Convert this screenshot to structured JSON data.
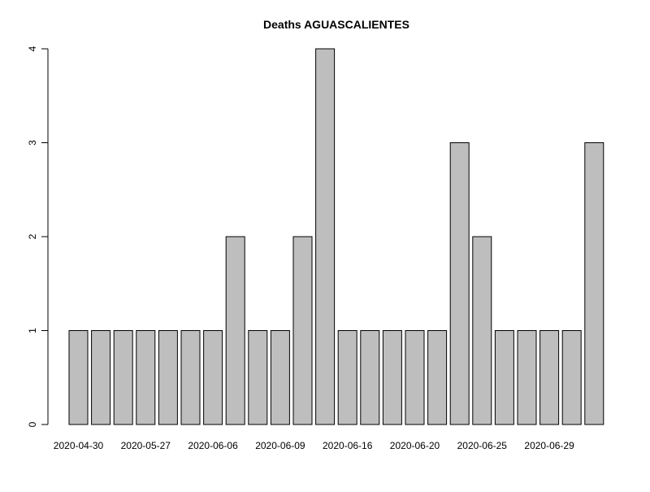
{
  "chart_data": {
    "type": "bar",
    "title": "Deaths AGUASCALIENTES",
    "xlabel": "",
    "ylabel": "",
    "ylim": [
      0,
      4
    ],
    "yticks": [
      0,
      1,
      2,
      3,
      4
    ],
    "ytick_labels": [
      "0",
      "1",
      "2",
      "3",
      "4"
    ],
    "grid": false,
    "legend": "none",
    "bar_color": "#bebebe",
    "bar_stroke": "#000000",
    "values": [
      1,
      1,
      1,
      1,
      1,
      1,
      1,
      2,
      1,
      1,
      2,
      4,
      1,
      1,
      1,
      1,
      1,
      3,
      2,
      1,
      1,
      1,
      1,
      3
    ],
    "categories": [
      "2020-04-30",
      "",
      "",
      "2020-05-27",
      "",
      "",
      "2020-06-06",
      "",
      "",
      "2020-06-09",
      "",
      "",
      "2020-06-16",
      "",
      "",
      "2020-06-20",
      "",
      "",
      "2020-06-25",
      "",
      "",
      "2020-06-29",
      "",
      ""
    ],
    "xtick_labels": [
      {
        "index": 0,
        "label": "2020-04-30"
      },
      {
        "index": 3,
        "label": "2020-05-27"
      },
      {
        "index": 6,
        "label": "2020-06-06"
      },
      {
        "index": 9,
        "label": "2020-06-09"
      },
      {
        "index": 12,
        "label": "2020-06-16"
      },
      {
        "index": 15,
        "label": "2020-06-20"
      },
      {
        "index": 18,
        "label": "2020-06-25"
      },
      {
        "index": 21,
        "label": "2020-06-29"
      }
    ]
  }
}
